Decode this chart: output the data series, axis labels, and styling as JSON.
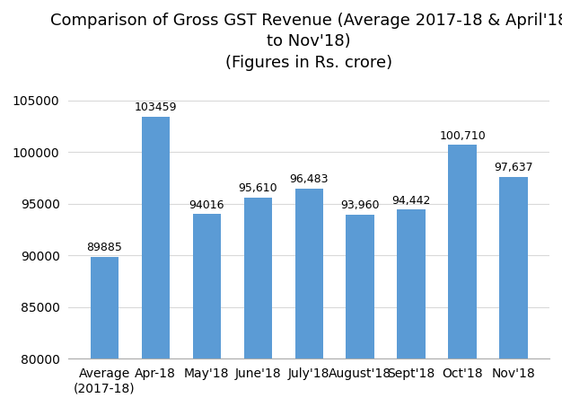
{
  "categories": [
    "Average\n(2017-18)",
    "Apr-18",
    "May'18",
    "June'18",
    "July'18",
    "August'18",
    "Sept'18",
    "Oct'18",
    "Nov'18"
  ],
  "values": [
    89885,
    103459,
    94016,
    95610,
    96483,
    93960,
    94442,
    100710,
    97637
  ],
  "labels": [
    "89885",
    "103459",
    "94016",
    "95,610",
    "96,483",
    "93,960",
    "94,442",
    "100,710",
    "97,637"
  ],
  "bar_color": "#5b9bd5",
  "ylim": [
    80000,
    107000
  ],
  "yticks": [
    80000,
    85000,
    90000,
    95000,
    100000,
    105000
  ],
  "title_fontsize": 13,
  "tick_fontsize": 10,
  "label_fontsize": 9,
  "background_color": "#ffffff",
  "grid_color": "#d9d9d9",
  "bar_width": 0.55
}
